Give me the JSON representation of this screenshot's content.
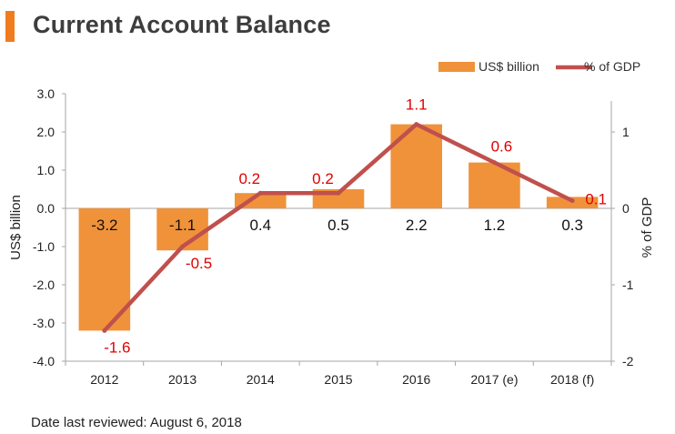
{
  "header": {
    "title": "Current Account Balance",
    "accent_color": "#f07c20"
  },
  "footer": {
    "note": "Date last reviewed: August 6, 2018"
  },
  "chart_data": {
    "type": "bar",
    "categories": [
      "2012",
      "2013",
      "2014",
      "2015",
      "2016",
      "2017 (e)",
      "2018 (f)"
    ],
    "series": [
      {
        "name": "US$ billion",
        "type": "bar",
        "axis": "left",
        "color": "#f0923a",
        "values": [
          -3.2,
          -1.1,
          0.4,
          0.5,
          2.2,
          1.2,
          0.3
        ],
        "labels": [
          "-3.2",
          "-1.1",
          "0.4",
          "0.5",
          "2.2",
          "1.2",
          "0.3"
        ]
      },
      {
        "name": "% of GDP",
        "type": "line",
        "axis": "right",
        "color": "#c0504d",
        "values": [
          -1.6,
          -0.5,
          0.2,
          0.2,
          1.1,
          0.6,
          0.1
        ],
        "labels": [
          "-1.6",
          "-0.5",
          "0.2",
          "0.2",
          "1.1",
          "0.6",
          "0.1"
        ],
        "label_color": "#e00000"
      }
    ],
    "ylabel": "US$ billion",
    "y2label": "% of GDP",
    "ylim": [
      -4.0,
      3.0
    ],
    "y2lim": [
      -2,
      1.5
    ],
    "yticks": [
      "3.0",
      "2.0",
      "1.0",
      "0.0",
      "-1.0",
      "-2.0",
      "-3.0",
      "-4.0"
    ],
    "ytick_values": [
      3,
      2,
      1,
      0,
      -1,
      -2,
      -3,
      -4
    ],
    "y2ticks": [
      "1",
      "0",
      "-1",
      "-2"
    ],
    "y2tick_values": [
      1,
      0,
      -1,
      -2
    ],
    "grid": false,
    "legend_position": "top-right"
  }
}
